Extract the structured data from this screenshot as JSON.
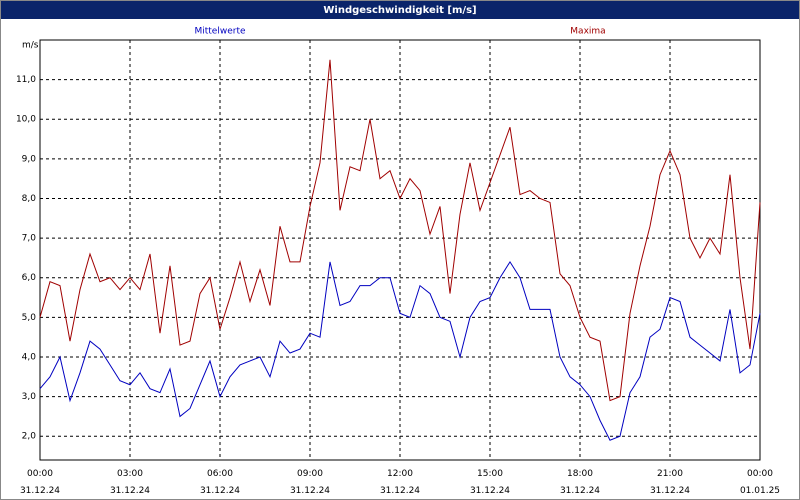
{
  "chart_data": {
    "type": "line",
    "title": "Windgeschwindigkeit [m/s]",
    "y_label": "m/s",
    "x": [
      0,
      20,
      40,
      60,
      80,
      100,
      120,
      140,
      160,
      180,
      200,
      220,
      240,
      260,
      280,
      300,
      320,
      340,
      360,
      380,
      400,
      420,
      440,
      460,
      480,
      500,
      520,
      540,
      560,
      580,
      600,
      620,
      640,
      660,
      680,
      700,
      720,
      740,
      760,
      780,
      800,
      820,
      840,
      860,
      880,
      900,
      920,
      940,
      960,
      980,
      1000,
      1020,
      1040,
      1060,
      1080,
      1100,
      1120,
      1140,
      1160,
      1180,
      1200,
      1220,
      1240,
      1260,
      1280,
      1300,
      1320,
      1340,
      1360,
      1380,
      1400,
      1420,
      1440
    ],
    "series": [
      {
        "name": "Mittelwerte",
        "color": "#0000c0",
        "values": [
          3.2,
          3.5,
          4.0,
          2.9,
          3.6,
          4.4,
          4.2,
          3.8,
          3.4,
          3.3,
          3.6,
          3.2,
          3.1,
          3.7,
          2.5,
          2.7,
          3.3,
          3.9,
          3.0,
          3.5,
          3.8,
          3.9,
          4.0,
          3.5,
          4.4,
          4.1,
          4.2,
          4.6,
          4.5,
          6.4,
          5.3,
          5.4,
          5.8,
          5.8,
          6.0,
          6.0,
          5.1,
          5.0,
          5.8,
          5.6,
          5.0,
          4.9,
          4.0,
          5.0,
          5.4,
          5.5,
          6.0,
          6.4,
          6.0,
          5.2,
          5.2,
          5.2,
          4.0,
          3.5,
          3.3,
          3.0,
          2.4,
          1.9,
          2.0,
          3.1,
          3.5,
          4.5,
          4.7,
          5.5,
          5.4,
          4.5,
          4.3,
          4.1,
          3.9,
          5.2,
          3.6,
          3.8,
          5.1
        ]
      },
      {
        "name": "Maxima",
        "color": "#a00000",
        "values": [
          5.0,
          5.9,
          5.8,
          4.4,
          5.7,
          6.6,
          5.9,
          6.0,
          5.7,
          6.0,
          5.7,
          6.6,
          4.6,
          6.3,
          4.3,
          4.4,
          5.6,
          6.0,
          4.7,
          5.5,
          6.4,
          5.4,
          6.2,
          5.3,
          7.3,
          6.4,
          6.4,
          7.8,
          8.9,
          11.5,
          7.7,
          8.8,
          8.7,
          10.0,
          8.5,
          8.7,
          8.0,
          8.5,
          8.2,
          7.1,
          7.8,
          5.6,
          7.6,
          8.9,
          7.7,
          8.4,
          9.1,
          9.8,
          8.1,
          8.2,
          8.0,
          7.9,
          6.1,
          5.8,
          5.0,
          4.5,
          4.4,
          2.9,
          3.0,
          5.1,
          6.3,
          7.3,
          8.6,
          9.2,
          8.6,
          7.0,
          6.5,
          7.0,
          6.6,
          8.6,
          6.0,
          4.2,
          7.9
        ]
      }
    ],
    "xlim": [
      0,
      1440
    ],
    "xticks": [
      {
        "value": 0,
        "label": "00:00\n31.12.24"
      },
      {
        "value": 180,
        "label": "03:00\n31.12.24"
      },
      {
        "value": 360,
        "label": "06:00\n31.12.24"
      },
      {
        "value": 540,
        "label": "09:00\n31.12.24"
      },
      {
        "value": 720,
        "label": "12:00\n31.12.24"
      },
      {
        "value": 900,
        "label": "15:00\n31.12.24"
      },
      {
        "value": 1080,
        "label": "18:00\n31.12.24"
      },
      {
        "value": 1260,
        "label": "21:00\n31.12.24"
      },
      {
        "value": 1440,
        "label": "00:00\n01.01.25"
      }
    ],
    "ylim": [
      1.4,
      12.0
    ],
    "yticks": [
      {
        "value": 2,
        "label": "2,0"
      },
      {
        "value": 3,
        "label": "3,0"
      },
      {
        "value": 4,
        "label": "4,0"
      },
      {
        "value": 5,
        "label": "5,0"
      },
      {
        "value": 6,
        "label": "6,0"
      },
      {
        "value": 7,
        "label": "7,0"
      },
      {
        "value": 8,
        "label": "8,0"
      },
      {
        "value": 9,
        "label": "9,0"
      },
      {
        "value": 10,
        "label": "10,0"
      },
      {
        "value": 11,
        "label": "11,0"
      }
    ],
    "grid": true
  }
}
